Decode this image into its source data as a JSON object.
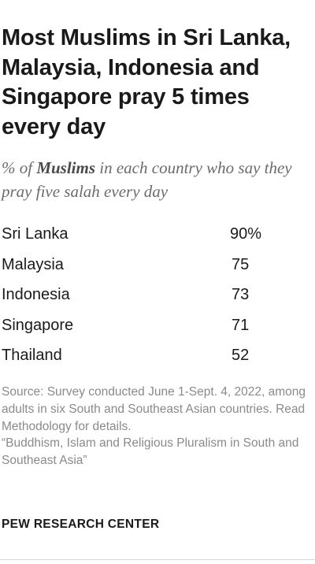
{
  "title": "Most Muslims in Sri Lanka, Malaysia, Indonesia and Singapore pray 5 times every day",
  "subtitle": {
    "prefix": "% of ",
    "emphasis": "Muslims",
    "suffix": " in each country who say they pray five salah every day"
  },
  "chart_data": {
    "type": "table",
    "title": "Most Muslims in Sri Lanka, Malaysia, Indonesia and Singapore pray 5 times every day",
    "subtitle": "% of Muslims in each country who say they pray five salah every day",
    "categories": [
      "Sri Lanka",
      "Malaysia",
      "Indonesia",
      "Singapore",
      "Thailand"
    ],
    "values": [
      90,
      75,
      73,
      71,
      52
    ],
    "value_labels": [
      "90%",
      "75",
      "73",
      "71",
      "52"
    ]
  },
  "source": {
    "note": "Source: Survey conducted June 1-Sept. 4, 2022, among adults in six South and Southeast Asian countries. Read Methodology for details.",
    "report": "“Buddhism, Islam and Religious Pluralism in South and Southeast Asia”"
  },
  "organization": "PEW RESEARCH CENTER"
}
